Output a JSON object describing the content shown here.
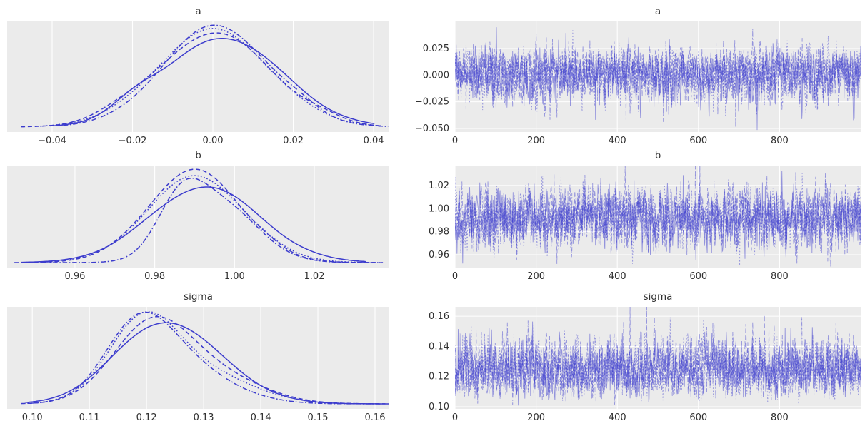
{
  "figure": {
    "kind": "bayesian-trace-plot",
    "background": "#ffffff",
    "panel_background": "#ebebeb",
    "grid_color": "#ffffff",
    "line_color": "#3c3ccd",
    "trace_opacity": 0.5,
    "text_color": "#303030",
    "parameters": [
      "a",
      "b",
      "sigma"
    ],
    "columns": [
      "posterior-density-kde",
      "sampler-trace"
    ],
    "n_chains": 4,
    "chain_linestyles": [
      "solid",
      "dashed",
      "dotted",
      "dashdot"
    ]
  },
  "chart_data": [
    {
      "type": "line",
      "subtype": "kde",
      "title": "a",
      "row": 0,
      "col": 0,
      "xlim": [
        -0.0512,
        0.0439
      ],
      "x_tick_values": [
        -0.04,
        -0.02,
        0,
        0.02,
        0.04
      ],
      "x_tick_labels": [
        "−0.04",
        "−0.02",
        "0.00",
        "0.02",
        "0.04"
      ],
      "grid": "vertical",
      "chains": [
        {
          "style": "solid",
          "range": [
            -0.0405,
            0.0402
          ],
          "components": [
            [
              0.9,
              0.0028,
              0.0146
            ],
            [
              0.13,
              -0.0195,
              0.0055
            ]
          ]
        },
        {
          "style": "dashed",
          "range": [
            -0.0478,
            0.042
          ],
          "components": [
            [
              0.95,
              0.0003,
              0.014
            ],
            [
              0.06,
              -0.024,
              0.006
            ],
            [
              0.05,
              0.027,
              0.005
            ]
          ]
        },
        {
          "style": "dotted",
          "range": [
            -0.043,
            0.0398
          ],
          "components": [
            [
              0.98,
              0.0,
              0.0141
            ]
          ]
        },
        {
          "style": "dashdot",
          "range": [
            -0.0372,
            0.0436
          ],
          "components": [
            [
              1.02,
              0.0008,
              0.0133
            ],
            [
              0.05,
              0.0225,
              0.0045
            ]
          ]
        }
      ]
    },
    {
      "type": "line",
      "subtype": "trace",
      "title": "a",
      "row": 0,
      "col": 1,
      "xlim": [
        0,
        1000
      ],
      "x_tick_values": [
        0,
        200,
        400,
        600,
        800
      ],
      "x_tick_labels": [
        "0",
        "200",
        "400",
        "600",
        "800"
      ],
      "ylim": [
        -0.0534,
        0.0505
      ],
      "y_tick_values": [
        0.025,
        0,
        -0.025,
        -0.05
      ],
      "y_tick_labels": [
        "0.025",
        "0.000",
        "−0.025",
        "−0.050"
      ],
      "grid": "both",
      "n_draws": 1000,
      "mean": 0.0005,
      "sd": 0.0133,
      "skew": -0.05,
      "seed": 101,
      "chain_styles": [
        "solid",
        "dashed",
        "dotted",
        "dashdot"
      ],
      "chain_offsets": [
        0,
        0.04,
        -0.04,
        0.02
      ]
    },
    {
      "type": "line",
      "subtype": "kde",
      "title": "b",
      "row": 1,
      "col": 0,
      "xlim": [
        0.943,
        1.0388
      ],
      "x_tick_values": [
        0.96,
        0.98,
        1.0,
        1.02
      ],
      "x_tick_labels": [
        "0.96",
        "0.98",
        "1.00",
        "1.02"
      ],
      "grid": "vertical",
      "chains": [
        {
          "style": "solid",
          "range": [
            0.9465,
            1.033
          ],
          "components": [
            [
              0.82,
              0.9925,
              0.0138
            ]
          ]
        },
        {
          "style": "dashed",
          "range": [
            0.948,
            1.0365
          ],
          "components": [
            [
              1.0,
              0.9898,
              0.0115
            ],
            [
              0.04,
              1.0085,
              0.004
            ]
          ]
        },
        {
          "style": "dotted",
          "range": [
            0.9525,
            1.034
          ],
          "components": [
            [
              0.93,
              0.9903,
              0.0122
            ]
          ]
        },
        {
          "style": "dashdot",
          "range": [
            0.9448,
            1.0372
          ],
          "components": [
            [
              0.5,
              0.9865,
              0.0058
            ],
            [
              0.62,
              0.9962,
              0.0095
            ]
          ]
        }
      ]
    },
    {
      "type": "line",
      "subtype": "trace",
      "title": "b",
      "row": 1,
      "col": 1,
      "xlim": [
        0,
        1000
      ],
      "x_tick_values": [
        0,
        200,
        400,
        600,
        800
      ],
      "x_tick_labels": [
        "0",
        "200",
        "400",
        "600",
        "800"
      ],
      "ylim": [
        0.9489,
        1.0373
      ],
      "y_tick_values": [
        1.02,
        1.0,
        0.98,
        0.96
      ],
      "y_tick_labels": [
        "1.02",
        "1.00",
        "0.98",
        "0.96"
      ],
      "grid": "both",
      "n_draws": 1000,
      "mean": 0.992,
      "sd": 0.0132,
      "skew": 0,
      "seed": 202,
      "chain_styles": [
        "solid",
        "dashed",
        "dotted",
        "dashdot"
      ],
      "chain_offsets": [
        0,
        0.03,
        -0.03,
        0.015
      ]
    },
    {
      "type": "line",
      "subtype": "kde",
      "title": "sigma",
      "row": 2,
      "col": 0,
      "xlim": [
        0.0956,
        0.1625
      ],
      "x_tick_values": [
        0.1,
        0.11,
        0.12,
        0.13,
        0.14,
        0.15,
        0.16
      ],
      "x_tick_labels": [
        "0.10",
        "0.11",
        "0.12",
        "0.13",
        "0.14",
        "0.15",
        "0.16"
      ],
      "grid": "vertical",
      "chains": [
        {
          "style": "solid",
          "range": [
            0.0988,
            0.164
          ],
          "components": [
            [
              0.78,
              0.1208,
              0.008
            ],
            [
              0.48,
              0.129,
              0.0085
            ]
          ]
        },
        {
          "style": "dashed",
          "range": [
            0.0992,
            0.1618
          ],
          "components": [
            [
              0.95,
              0.1202,
              0.0066
            ],
            [
              0.45,
              0.1305,
              0.0085
            ]
          ]
        },
        {
          "style": "dotted",
          "range": [
            0.0997,
            0.1598
          ],
          "components": [
            [
              1.0,
              0.1193,
              0.0062
            ],
            [
              0.42,
              0.129,
              0.009
            ]
          ]
        },
        {
          "style": "dashdot",
          "range": [
            0.098,
            0.1612
          ],
          "components": [
            [
              0.9,
              0.1186,
              0.0058
            ],
            [
              0.5,
              0.1258,
              0.0085
            ]
          ]
        }
      ]
    },
    {
      "type": "line",
      "subtype": "trace",
      "title": "sigma",
      "row": 2,
      "col": 1,
      "xlim": [
        0,
        1000
      ],
      "x_tick_values": [
        0,
        200,
        400,
        600,
        800
      ],
      "x_tick_labels": [
        "0",
        "200",
        "400",
        "600",
        "800"
      ],
      "ylim": [
        0.0986,
        0.1662
      ],
      "y_tick_values": [
        0.16,
        0.14,
        0.12,
        0.1
      ],
      "y_tick_labels": [
        "0.16",
        "0.14",
        "0.12",
        "0.10"
      ],
      "grid": "both",
      "n_draws": 1000,
      "mean": 0.1253,
      "sd": 0.0098,
      "skew": 0.13,
      "seed": 303,
      "chain_styles": [
        "solid",
        "dashed",
        "dotted",
        "dashdot"
      ],
      "chain_offsets": [
        0,
        0.03,
        -0.03,
        0.015
      ]
    }
  ]
}
